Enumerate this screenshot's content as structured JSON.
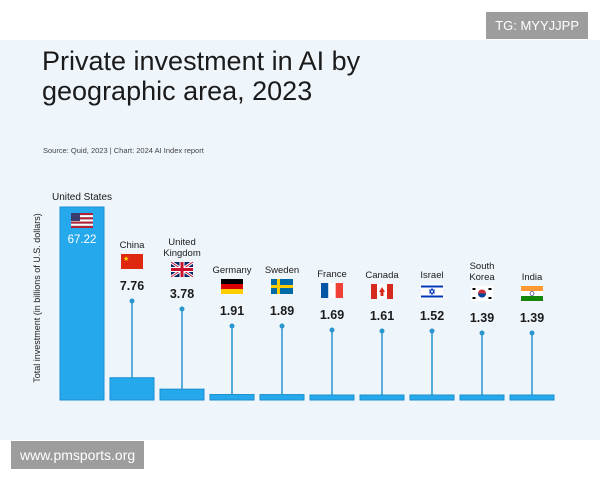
{
  "badges": {
    "top_right": "TG: MYYJJPP",
    "bottom_left": "www.pmsports.org"
  },
  "chart_data": {
    "type": "bar",
    "title": "Private investment in AI by geographic area, 2023",
    "source": "Source: Quid, 2023 | Chart: 2024 AI Index report",
    "ylabel": "Total investment (in billions of U.S. dollars)",
    "xlabel": "",
    "categories": [
      "United States",
      "China",
      "United Kingdom",
      "Germany",
      "Sweden",
      "France",
      "Canada",
      "Israel",
      "South Korea",
      "India"
    ],
    "values": [
      67.22,
      7.76,
      3.78,
      1.91,
      1.89,
      1.69,
      1.61,
      1.52,
      1.39,
      1.39
    ],
    "ylim": [
      0,
      67.22
    ],
    "grid": false,
    "colors": {
      "bar": "#26a9ec",
      "bar_edge": "#1a90d0",
      "stem": "#2a95cf",
      "label": "#1b1b1b",
      "value_on_bar": "#ffffff"
    },
    "flags": [
      "us-flag-icon",
      "china-flag-icon",
      "uk-flag-icon",
      "germany-flag-icon",
      "sweden-flag-icon",
      "france-flag-icon",
      "canada-flag-icon",
      "israel-flag-icon",
      "south-korea-flag-icon",
      "india-flag-icon"
    ]
  }
}
